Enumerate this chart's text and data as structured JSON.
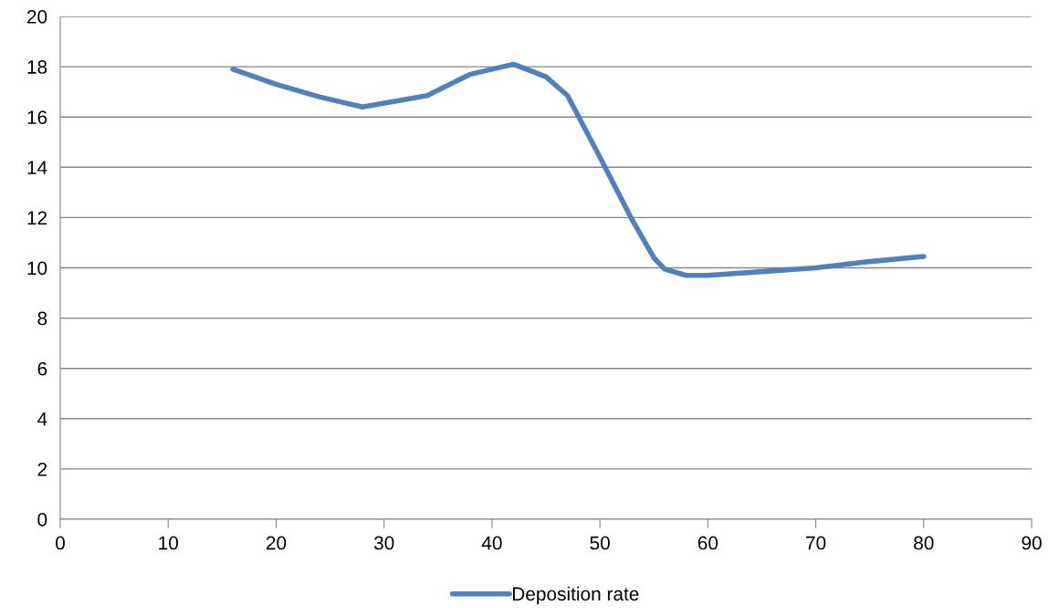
{
  "chart_data": {
    "type": "line",
    "x": [
      16,
      20,
      24,
      28,
      34,
      38,
      42,
      45,
      47,
      50,
      53,
      55,
      56,
      58,
      60,
      65,
      70,
      75,
      80
    ],
    "series": [
      {
        "name": "Deposition rate",
        "color": "#4f81bd",
        "values": [
          17.9,
          17.3,
          16.8,
          16.4,
          16.85,
          17.7,
          18.1,
          17.6,
          16.85,
          14.4,
          11.9,
          10.4,
          9.95,
          9.7,
          9.7,
          9.85,
          10.0,
          10.25,
          10.45
        ]
      }
    ],
    "xlim": [
      0,
      90
    ],
    "xticks": [
      0,
      10,
      20,
      30,
      40,
      50,
      60,
      70,
      80,
      90
    ],
    "ylim": [
      0,
      20
    ],
    "yticks": [
      0,
      2,
      4,
      6,
      8,
      10,
      12,
      14,
      16,
      18,
      20
    ],
    "grid": "y",
    "legend": "bottom",
    "marker": "none",
    "line_style": "solid"
  }
}
